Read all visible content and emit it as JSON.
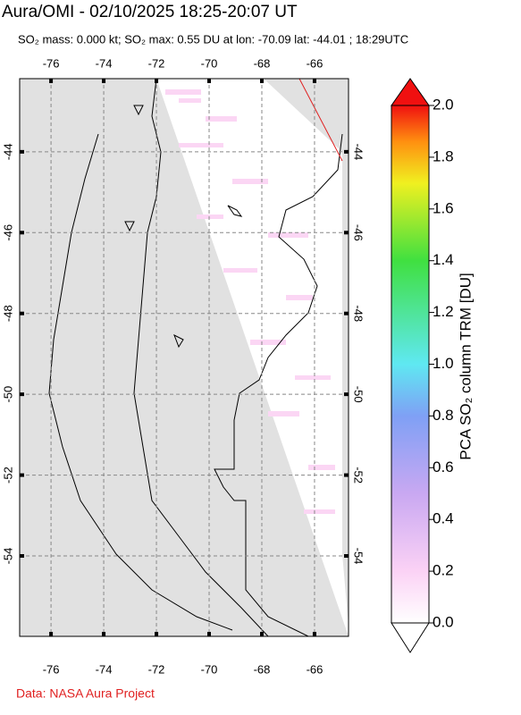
{
  "header": {
    "title": "Aura/OMI - 02/10/2025 18:25-20:07 UT",
    "subtitle": "SO₂ mass: 0.000 kt; SO₂ max: 0.55 DU at lon: -70.09 lat: -44.01 ; 18:29UTC"
  },
  "map": {
    "lonlim": [
      -77.19,
      -64.71
    ],
    "latlim": [
      -42.19,
      -55.99
    ],
    "lon_ticks": [
      -76,
      -74,
      -72,
      -70,
      -68,
      -66
    ],
    "lat_ticks": [
      -44,
      -46,
      -48,
      -50,
      -52,
      -54
    ]
  },
  "colorbar": {
    "label": "PCA SO₂ column TRM [DU]",
    "lim": [
      0,
      2
    ],
    "ticks": [
      {
        "value": 0,
        "label": "0.0"
      },
      {
        "value": 0.2,
        "label": "0.2"
      },
      {
        "value": 0.4,
        "label": "0.4"
      },
      {
        "value": 0.6,
        "label": "0.6"
      },
      {
        "value": 0.8,
        "label": "0.8"
      },
      {
        "value": 1,
        "label": "1.0"
      },
      {
        "value": 1.2,
        "label": "1.2"
      },
      {
        "value": 1.4,
        "label": "1.4"
      },
      {
        "value": 1.6,
        "label": "1.6"
      },
      {
        "value": 1.8,
        "label": "1.8"
      },
      {
        "value": 2,
        "label": "2.0"
      }
    ]
  },
  "footer": {
    "credit": "Data: NASA Aura Project"
  }
}
